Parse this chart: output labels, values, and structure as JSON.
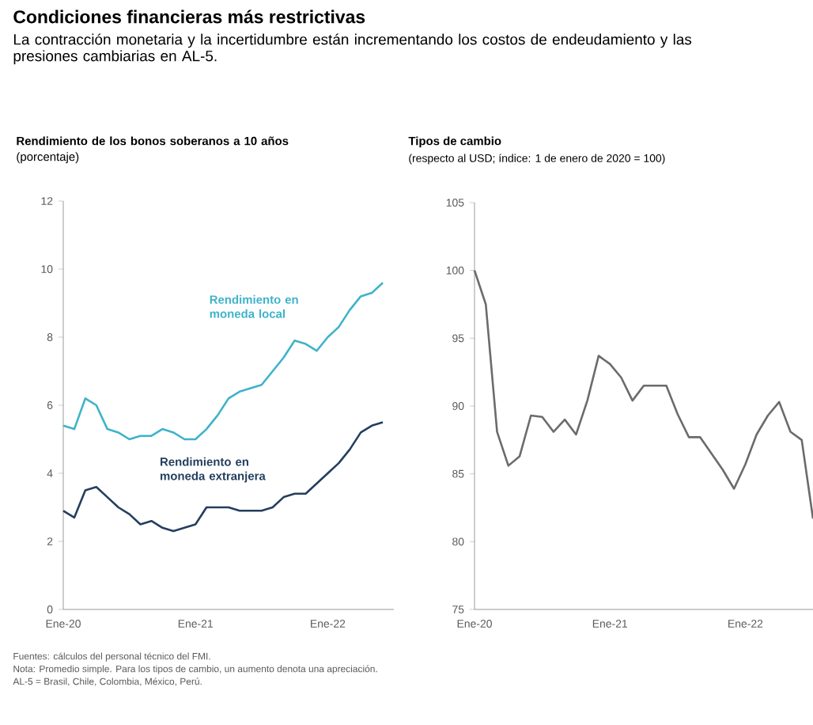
{
  "chart_data": [
    {
      "type": "line",
      "title": "Condiciones financieras más restrictivas",
      "subtitle": "La contracción monetaria y la incertidumbre están incrementando los costos de endeudamiento y las presiones cambiarias en AL-5.",
      "ylabel": "**Rendimiento de los bonos soberanos a 10 años** (porcentaje)",
      "xlim": [
        "2020-01",
        "2022-07"
      ],
      "xticks": [
        {
          "value": "2020-01",
          "label": "Ene-20"
        },
        {
          "value": "2021-01",
          "label": "Ene-21"
        },
        {
          "value": "2022-01",
          "label": "Ene-22"
        }
      ],
      "ylim": [
        0,
        12
      ],
      "yticks": [
        0,
        2,
        4,
        6,
        8,
        10,
        12
      ],
      "series": [
        {
          "name": "Rendimiento en moneda local",
          "color": "#3fb3c9",
          "x": [
            "2020-01",
            "2020-02",
            "2020-03",
            "2020-04",
            "2020-05",
            "2020-06",
            "2020-07",
            "2020-08",
            "2020-09",
            "2020-10",
            "2020-11",
            "2020-12",
            "2021-01",
            "2021-02",
            "2021-03",
            "2021-04",
            "2021-05",
            "2021-06",
            "2021-07",
            "2021-08",
            "2021-09",
            "2021-10",
            "2021-11",
            "2021-12",
            "2022-01",
            "2022-02",
            "2022-03",
            "2022-04",
            "2022-05",
            "2022-06"
          ],
          "values": [
            5.4,
            5.3,
            6.2,
            6.0,
            5.3,
            5.2,
            5.0,
            5.1,
            5.1,
            5.3,
            5.2,
            5.0,
            5.0,
            5.3,
            5.7,
            6.2,
            6.4,
            6.5,
            6.6,
            7.0,
            7.4,
            7.9,
            7.8,
            7.6,
            8.0,
            8.3,
            8.8,
            9.2,
            9.3,
            9.6
          ]
        },
        {
          "name": "Rendimiento en moneda extranjera",
          "color": "#243f5e",
          "x": [
            "2020-01",
            "2020-02",
            "2020-03",
            "2020-04",
            "2020-05",
            "2020-06",
            "2020-07",
            "2020-08",
            "2020-09",
            "2020-10",
            "2020-11",
            "2020-12",
            "2021-01",
            "2021-02",
            "2021-03",
            "2021-04",
            "2021-05",
            "2021-06",
            "2021-07",
            "2021-08",
            "2021-09",
            "2021-10",
            "2021-11",
            "2021-12",
            "2022-01",
            "2022-02",
            "2022-03",
            "2022-04",
            "2022-05",
            "2022-06"
          ],
          "values": [
            2.9,
            2.7,
            3.5,
            3.6,
            3.3,
            3.0,
            2.8,
            2.5,
            2.6,
            2.4,
            2.3,
            2.4,
            2.5,
            3.0,
            3.0,
            3.0,
            2.9,
            2.9,
            2.9,
            3.0,
            3.3,
            3.4,
            3.4,
            3.7,
            4.0,
            4.3,
            4.7,
            5.2,
            5.4,
            5.5
          ]
        }
      ],
      "annotations": [
        "Fuentes: cálculos del personal técnico del FMI.",
        "Nota: Promedio simple. Para los tipos de cambio, un aumento denota una apreciación.",
        "AL-5 = Brasil, Chile, Colombia, México, Perú."
      ]
    },
    {
      "type": "line",
      "title": "Tipos de cambio",
      "subtitle": "(respecto al USD; índice: 1 de enero de 2020 = 100)",
      "xlim": [
        "2020-01",
        "2022-07"
      ],
      "xticks": [
        {
          "value": "2020-01",
          "label": "Ene-20"
        },
        {
          "value": "2021-01",
          "label": "Ene-21"
        },
        {
          "value": "2022-01",
          "label": "Ene-22"
        }
      ],
      "ylim": [
        75,
        105
      ],
      "yticks": [
        75,
        80,
        85,
        90,
        95,
        100,
        105
      ],
      "series": [
        {
          "color": "#6b6b6b",
          "x": [
            "2020-01",
            "2020-02",
            "2020-03",
            "2020-04",
            "2020-05",
            "2020-06",
            "2020-07",
            "2020-08",
            "2020-09",
            "2020-10",
            "2020-11",
            "2020-12",
            "2021-01",
            "2021-02",
            "2021-03",
            "2021-04",
            "2021-05",
            "2021-06",
            "2021-07",
            "2021-08",
            "2021-09",
            "2021-10",
            "2021-11",
            "2021-12",
            "2022-01",
            "2022-02",
            "2022-03",
            "2022-04",
            "2022-05",
            "2022-06",
            "2022-07"
          ],
          "values": [
            100,
            97.5,
            88.1,
            85.6,
            86.3,
            89.3,
            89.2,
            88.1,
            89.0,
            87.9,
            90.4,
            93.7,
            93.1,
            92.1,
            90.4,
            91.5,
            91.5,
            91.5,
            89.4,
            87.7,
            87.7,
            86.5,
            85.3,
            83.9,
            85.7,
            87.9,
            89.3,
            90.3,
            88.1,
            87.5,
            81.7
          ]
        }
      ]
    }
  ]
}
